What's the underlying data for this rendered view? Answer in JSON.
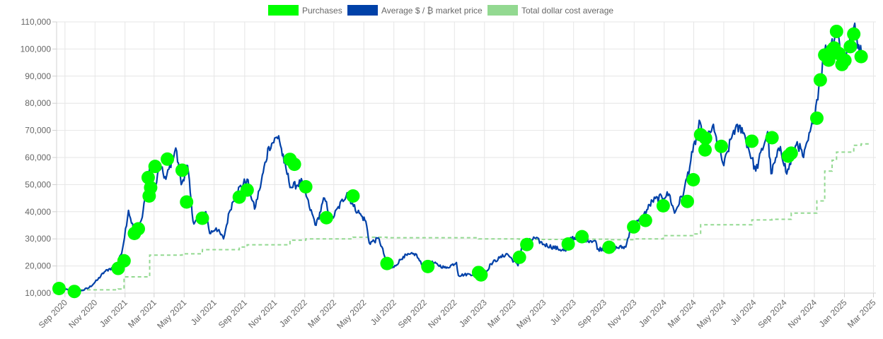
{
  "chart_data": {
    "type": "line",
    "legend_position": "top-center",
    "grid": true,
    "ylim": [
      10000,
      110000
    ],
    "y_ticks": [
      "10,000",
      "20,000",
      "30,000",
      "40,000",
      "50,000",
      "60,000",
      "70,000",
      "80,000",
      "90,000",
      "100,000",
      "110,000"
    ],
    "y_tick_values": [
      10000,
      20000,
      30000,
      40000,
      50000,
      60000,
      70000,
      80000,
      90000,
      100000,
      110000
    ],
    "x_range": [
      "2020-08-15",
      "2025-03-06"
    ],
    "x_ticks": [
      {
        "date": "2020-09-01",
        "label": "Sep 2020"
      },
      {
        "date": "2020-11-01",
        "label": "Nov 2020"
      },
      {
        "date": "2021-01-01",
        "label": "Jan 2021"
      },
      {
        "date": "2021-03-01",
        "label": "Mar 2021"
      },
      {
        "date": "2021-05-01",
        "label": "May 2021"
      },
      {
        "date": "2021-07-01",
        "label": "Jul 2021"
      },
      {
        "date": "2021-09-01",
        "label": "Sep 2021"
      },
      {
        "date": "2021-11-01",
        "label": "Nov 2021"
      },
      {
        "date": "2022-01-01",
        "label": "Jan 2022"
      },
      {
        "date": "2022-03-01",
        "label": "Mar 2022"
      },
      {
        "date": "2022-05-01",
        "label": "May 2022"
      },
      {
        "date": "2022-07-01",
        "label": "Jul 2022"
      },
      {
        "date": "2022-09-01",
        "label": "Sep 2022"
      },
      {
        "date": "2022-11-01",
        "label": "Nov 2022"
      },
      {
        "date": "2023-01-01",
        "label": "Jan 2023"
      },
      {
        "date": "2023-03-01",
        "label": "Mar 2023"
      },
      {
        "date": "2023-05-01",
        "label": "May 2023"
      },
      {
        "date": "2023-07-01",
        "label": "Jul 2023"
      },
      {
        "date": "2023-09-01",
        "label": "Sep 2023"
      },
      {
        "date": "2023-11-01",
        "label": "Nov 2023"
      },
      {
        "date": "2024-01-01",
        "label": "Jan 2024"
      },
      {
        "date": "2024-03-01",
        "label": "Mar 2024"
      },
      {
        "date": "2024-05-01",
        "label": "May 2024"
      },
      {
        "date": "2024-07-01",
        "label": "Jul 2024"
      },
      {
        "date": "2024-09-01",
        "label": "Sep 2024"
      },
      {
        "date": "2024-11-01",
        "label": "Nov 2024"
      },
      {
        "date": "2025-01-01",
        "label": "Jan 2025"
      },
      {
        "date": "2025-03-01",
        "label": "Mar 2025"
      }
    ],
    "series": [
      {
        "name": "Purchases",
        "kind": "scatter",
        "color": "#00ff00",
        "points": [
          [
            "2020-08-20",
            11700
          ],
          [
            "2020-09-20",
            10600
          ],
          [
            "2020-12-18",
            19100
          ],
          [
            "2020-12-30",
            21900
          ],
          [
            "2021-01-20",
            32000
          ],
          [
            "2021-01-28",
            33700
          ],
          [
            "2021-02-17",
            52600
          ],
          [
            "2021-02-19",
            45800
          ],
          [
            "2021-02-22",
            48900
          ],
          [
            "2021-03-03",
            56700
          ],
          [
            "2021-03-28",
            59400
          ],
          [
            "2021-04-27",
            55300
          ],
          [
            "2021-05-06",
            43600
          ],
          [
            "2021-06-07",
            37600
          ],
          [
            "2021-08-21",
            45400
          ],
          [
            "2021-09-06",
            48000
          ],
          [
            "2021-12-02",
            59300
          ],
          [
            "2021-12-11",
            57500
          ],
          [
            "2022-01-03",
            49200
          ],
          [
            "2022-02-14",
            37800
          ],
          [
            "2022-04-09",
            45800
          ],
          [
            "2022-06-17",
            20900
          ],
          [
            "2022-09-08",
            19800
          ],
          [
            "2022-12-20",
            17600
          ],
          [
            "2022-12-25",
            16700
          ],
          [
            "2023-03-13",
            23200
          ],
          [
            "2023-03-28",
            27900
          ],
          [
            "2023-06-20",
            28100
          ],
          [
            "2023-07-18",
            30800
          ],
          [
            "2023-09-11",
            26900
          ],
          [
            "2023-10-31",
            34400
          ],
          [
            "2023-11-24",
            36800
          ],
          [
            "2023-12-30",
            42200
          ],
          [
            "2024-02-17",
            43800
          ],
          [
            "2024-02-29",
            51800
          ],
          [
            "2024-03-15",
            68400
          ],
          [
            "2024-03-24",
            62800
          ],
          [
            "2024-03-25",
            67100
          ],
          [
            "2024-04-26",
            64100
          ],
          [
            "2024-06-27",
            66000
          ],
          [
            "2024-08-07",
            67300
          ],
          [
            "2024-09-09",
            60500
          ],
          [
            "2024-09-15",
            61600
          ],
          [
            "2024-11-06",
            74500
          ],
          [
            "2024-11-13",
            88600
          ],
          [
            "2024-11-22",
            97800
          ],
          [
            "2024-11-30",
            95900
          ],
          [
            "2024-12-07",
            99600
          ],
          [
            "2024-12-11",
            100400
          ],
          [
            "2024-12-16",
            106500
          ],
          [
            "2024-12-21",
            98300
          ],
          [
            "2024-12-27",
            94300
          ],
          [
            "2025-01-02",
            95800
          ],
          [
            "2025-01-13",
            100900
          ],
          [
            "2025-01-20",
            105500
          ],
          [
            "2025-02-04",
            97200
          ]
        ]
      },
      {
        "name": "Average $ / ₿ market price",
        "kind": "line",
        "color": "#0041a8",
        "points": [
          [
            "2020-08-15",
            11800
          ],
          [
            "2020-09-01",
            11400
          ],
          [
            "2020-09-15",
            10700
          ],
          [
            "2020-10-01",
            10600
          ],
          [
            "2020-10-20",
            12000
          ],
          [
            "2020-11-05",
            14700
          ],
          [
            "2020-11-20",
            17800
          ],
          [
            "2020-12-01",
            19000
          ],
          [
            "2020-12-15",
            19400
          ],
          [
            "2020-12-27",
            26500
          ],
          [
            "2021-01-08",
            40500
          ],
          [
            "2021-01-22",
            31000
          ],
          [
            "2021-02-05",
            38000
          ],
          [
            "2021-02-12",
            47500
          ],
          [
            "2021-02-21",
            57000
          ],
          [
            "2021-02-28",
            45000
          ],
          [
            "2021-03-12",
            57000
          ],
          [
            "2021-03-25",
            52000
          ],
          [
            "2021-04-14",
            63500
          ],
          [
            "2021-04-25",
            50000
          ],
          [
            "2021-05-08",
            57000
          ],
          [
            "2021-05-19",
            36500
          ],
          [
            "2021-06-01",
            37000
          ],
          [
            "2021-06-14",
            40000
          ],
          [
            "2021-06-22",
            32000
          ],
          [
            "2021-07-05",
            34000
          ],
          [
            "2021-07-20",
            30000
          ],
          [
            "2021-08-01",
            40000
          ],
          [
            "2021-08-14",
            47000
          ],
          [
            "2021-09-06",
            52000
          ],
          [
            "2021-09-21",
            41000
          ],
          [
            "2021-10-01",
            48000
          ],
          [
            "2021-10-20",
            64000
          ],
          [
            "2021-11-09",
            68000
          ],
          [
            "2021-11-20",
            58000
          ],
          [
            "2021-12-04",
            49000
          ],
          [
            "2021-12-27",
            51000
          ],
          [
            "2022-01-10",
            42000
          ],
          [
            "2022-01-24",
            35000
          ],
          [
            "2022-02-10",
            45000
          ],
          [
            "2022-02-24",
            37000
          ],
          [
            "2022-03-28",
            47000
          ],
          [
            "2022-04-10",
            42000
          ],
          [
            "2022-04-26",
            38500
          ],
          [
            "2022-05-05",
            36500
          ],
          [
            "2022-05-12",
            28500
          ],
          [
            "2022-06-01",
            30000
          ],
          [
            "2022-06-14",
            22500
          ],
          [
            "2022-06-18",
            19000
          ],
          [
            "2022-07-01",
            19500
          ],
          [
            "2022-07-20",
            23500
          ],
          [
            "2022-08-14",
            24500
          ],
          [
            "2022-08-28",
            20000
          ],
          [
            "2022-09-13",
            21500
          ],
          [
            "2022-10-15",
            19200
          ],
          [
            "2022-11-05",
            21300
          ],
          [
            "2022-11-09",
            16500
          ],
          [
            "2022-12-01",
            17000
          ],
          [
            "2022-12-20",
            16800
          ],
          [
            "2023-01-01",
            16600
          ],
          [
            "2023-01-14",
            20800
          ],
          [
            "2023-02-01",
            23000
          ],
          [
            "2023-02-16",
            24500
          ],
          [
            "2023-03-10",
            20100
          ],
          [
            "2023-03-18",
            27500
          ],
          [
            "2023-04-13",
            30300
          ],
          [
            "2023-05-01",
            28000
          ],
          [
            "2023-06-15",
            25500
          ],
          [
            "2023-06-25",
            30500
          ],
          [
            "2023-07-15",
            30000
          ],
          [
            "2023-08-15",
            29200
          ],
          [
            "2023-08-18",
            26200
          ],
          [
            "2023-09-15",
            26600
          ],
          [
            "2023-10-15",
            27000
          ],
          [
            "2023-10-25",
            34500
          ],
          [
            "2023-11-15",
            37000
          ],
          [
            "2023-12-08",
            44000
          ],
          [
            "2024-01-11",
            46500
          ],
          [
            "2024-01-22",
            39500
          ],
          [
            "2024-02-10",
            47500
          ],
          [
            "2024-02-28",
            62000
          ],
          [
            "2024-03-14",
            73000
          ],
          [
            "2024-03-20",
            63000
          ],
          [
            "2024-04-08",
            71500
          ],
          [
            "2024-05-01",
            57000
          ],
          [
            "2024-05-21",
            70000
          ],
          [
            "2024-06-07",
            71000
          ],
          [
            "2024-07-05",
            55000
          ],
          [
            "2024-07-29",
            69500
          ],
          [
            "2024-08-05",
            54000
          ],
          [
            "2024-08-24",
            64000
          ],
          [
            "2024-09-06",
            53900
          ],
          [
            "2024-09-27",
            65800
          ],
          [
            "2024-10-10",
            60000
          ],
          [
            "2024-10-29",
            72500
          ],
          [
            "2024-11-12",
            88000
          ],
          [
            "2024-11-22",
            99000
          ],
          [
            "2024-12-05",
            101500
          ],
          [
            "2024-12-17",
            107000
          ],
          [
            "2024-12-30",
            93000
          ],
          [
            "2025-01-07",
            101000
          ],
          [
            "2025-01-20",
            108000
          ],
          [
            "2025-02-05",
            97500
          ]
        ]
      },
      {
        "name": "Total dollar cost average",
        "kind": "step",
        "style": "dashed",
        "color": "#93d991",
        "points": [
          [
            "2020-08-15",
            11700
          ],
          [
            "2020-09-20",
            11200
          ],
          [
            "2020-12-18",
            11500
          ],
          [
            "2020-12-30",
            16000
          ],
          [
            "2021-02-20",
            24000
          ],
          [
            "2021-04-27",
            24500
          ],
          [
            "2021-06-07",
            26000
          ],
          [
            "2021-08-21",
            27000
          ],
          [
            "2021-09-06",
            27800
          ],
          [
            "2021-12-02",
            29500
          ],
          [
            "2022-01-03",
            30000
          ],
          [
            "2022-04-09",
            30600
          ],
          [
            "2022-06-17",
            30400
          ],
          [
            "2022-12-20",
            30000
          ],
          [
            "2023-03-13",
            29800
          ],
          [
            "2023-07-18",
            29900
          ],
          [
            "2023-09-11",
            29700
          ],
          [
            "2023-10-31",
            30000
          ],
          [
            "2023-12-30",
            31200
          ],
          [
            "2024-02-29",
            31800
          ],
          [
            "2024-03-15",
            35200
          ],
          [
            "2024-06-27",
            37000
          ],
          [
            "2024-08-07",
            37200
          ],
          [
            "2024-09-15",
            39500
          ],
          [
            "2024-11-06",
            44000
          ],
          [
            "2024-11-22",
            55000
          ],
          [
            "2024-12-07",
            59000
          ],
          [
            "2024-12-16",
            62000
          ],
          [
            "2025-01-20",
            64500
          ],
          [
            "2025-02-04",
            65000
          ]
        ]
      }
    ]
  }
}
